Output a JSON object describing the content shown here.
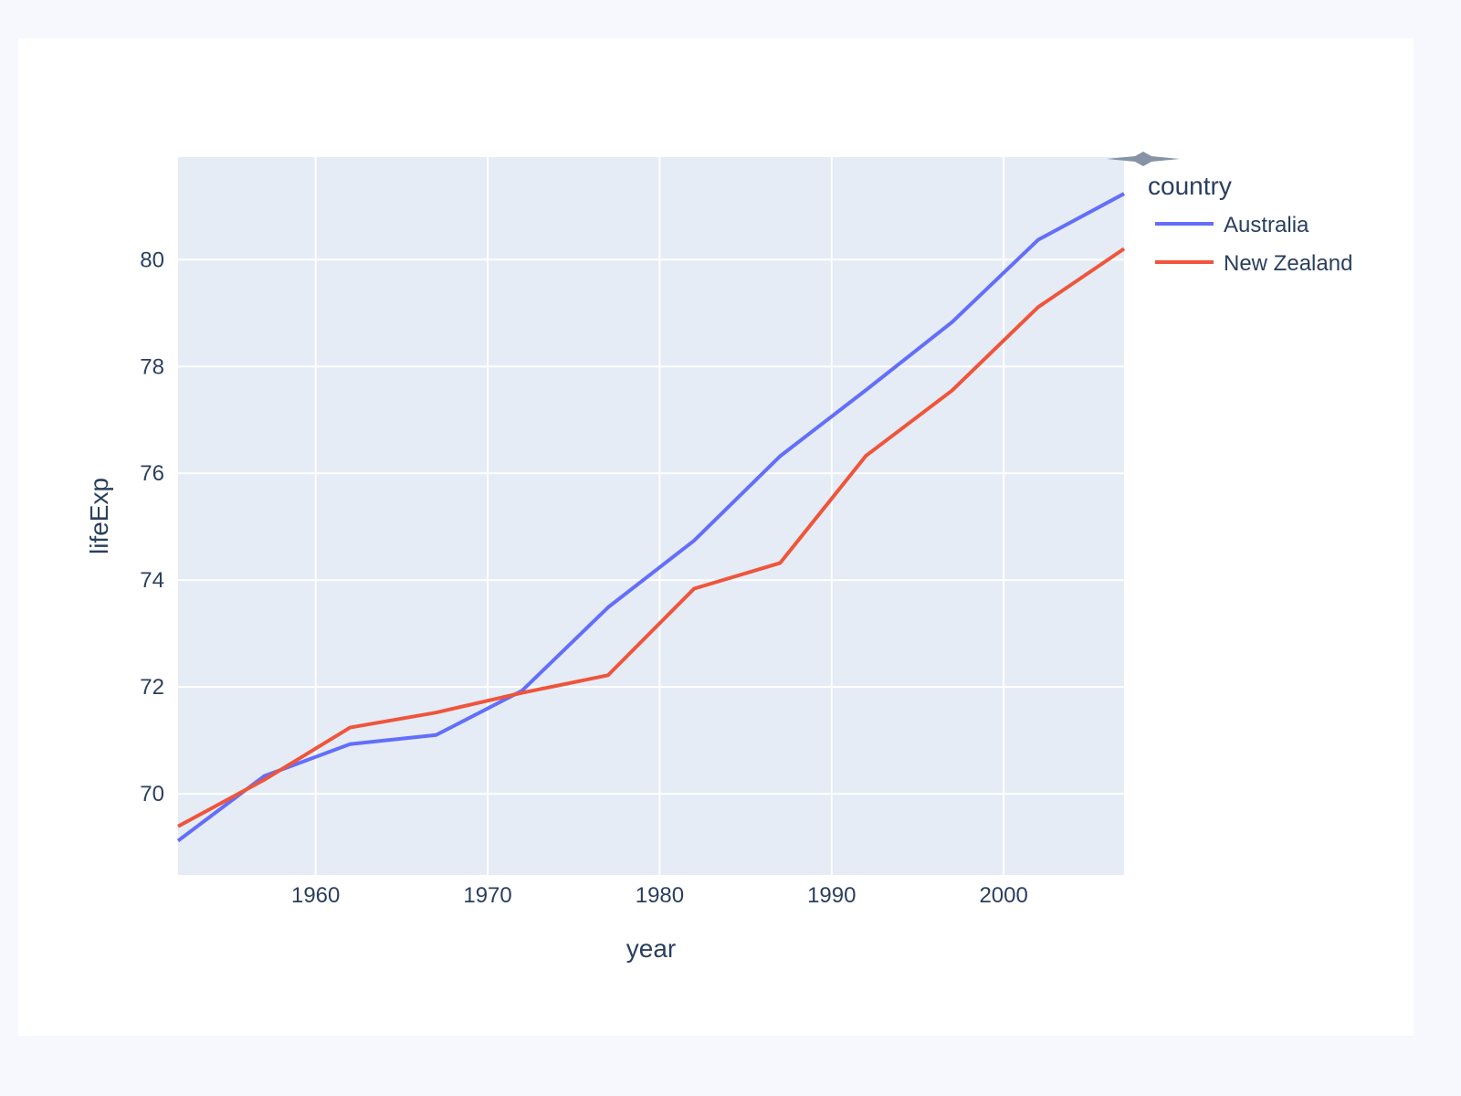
{
  "chart_data": {
    "type": "line",
    "xlabel": "year",
    "ylabel": "lifeExp",
    "xlim": [
      1952,
      2007
    ],
    "ylim": [
      68.48,
      81.92
    ],
    "xticks": [
      1960,
      1970,
      1980,
      1990,
      2000
    ],
    "yticks": [
      70,
      72,
      74,
      76,
      78,
      80
    ],
    "grid": true,
    "legend_title": "country",
    "legend_placement": "top-right",
    "x": [
      1952,
      1957,
      1962,
      1967,
      1972,
      1977,
      1982,
      1987,
      1992,
      1997,
      2002,
      2007
    ],
    "series": [
      {
        "name": "Australia",
        "color": "#636efa",
        "values": [
          69.12,
          70.33,
          70.93,
          71.1,
          71.93,
          73.49,
          74.74,
          76.32,
          77.56,
          78.83,
          80.37,
          81.235
        ]
      },
      {
        "name": "New Zealand",
        "color": "#ef553b",
        "values": [
          69.39,
          70.26,
          71.24,
          71.52,
          71.89,
          72.22,
          73.84,
          74.32,
          76.33,
          77.55,
          79.11,
          80.204
        ]
      }
    ],
    "plot_bg": "#e5ecf6"
  }
}
